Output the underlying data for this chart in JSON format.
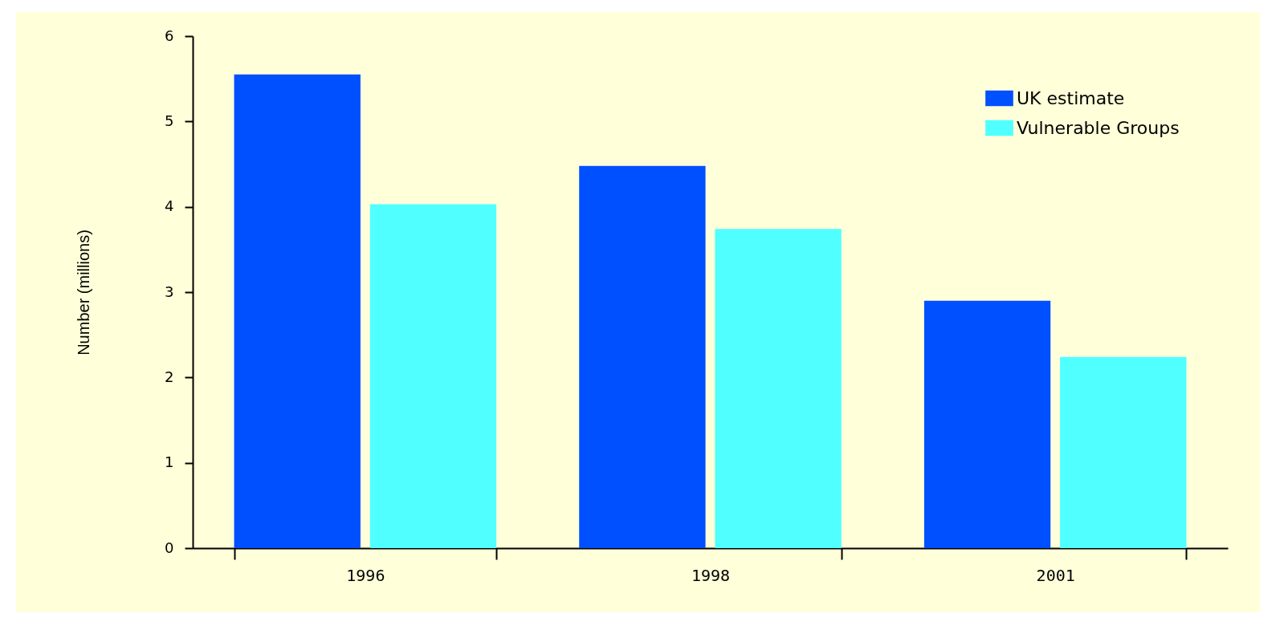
{
  "chart_data": {
    "type": "bar",
    "ylabel": "Number (millions)",
    "categories": [
      "1996",
      "1998",
      "2001"
    ],
    "series": [
      {
        "name": "UK estimate",
        "color": "#0050ff",
        "values": [
          5.55,
          4.48,
          2.9
        ]
      },
      {
        "name": "Vulnerable Groups",
        "color": "#50ffff",
        "values": [
          4.03,
          3.74,
          2.24
        ]
      }
    ],
    "ylim": [
      0,
      6
    ],
    "yticks": [
      0,
      1,
      2,
      3,
      4,
      5,
      6
    ],
    "grid": false,
    "legend": "top right"
  }
}
